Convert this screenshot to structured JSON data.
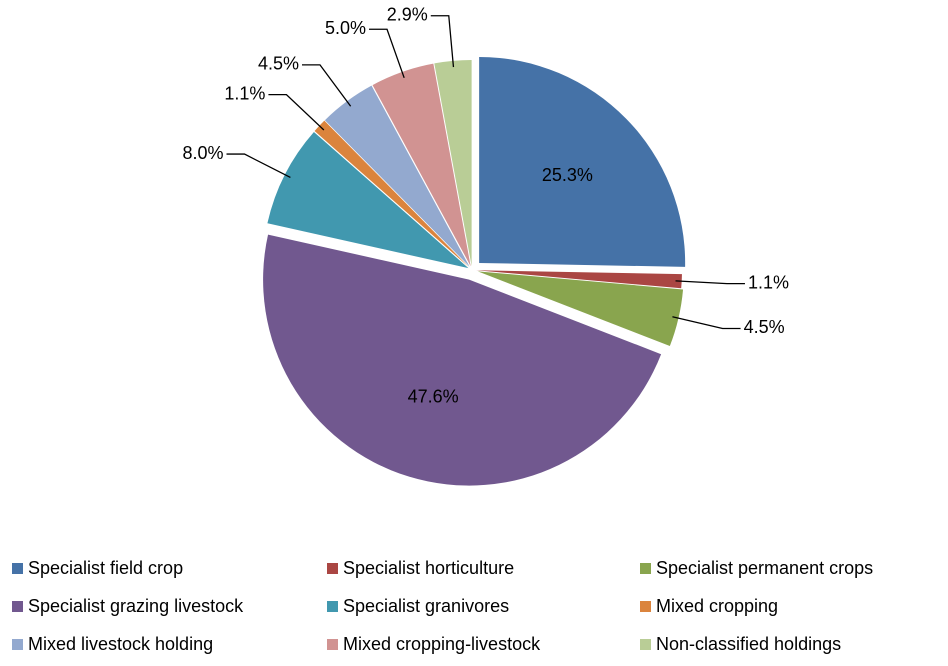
{
  "chart_data": {
    "type": "pie",
    "categories": [
      "Specialist field crop",
      "Specialist horticulture",
      "Specialist permanent crops",
      "Specialist grazing livestock",
      "Specialist granivores",
      "Mixed cropping",
      "Mixed livestock holding",
      "Mixed cropping-livestock",
      "Non-classified holdings"
    ],
    "values": [
      25.3,
      1.1,
      4.5,
      47.6,
      8.0,
      1.1,
      4.5,
      5.0,
      2.9
    ],
    "value_labels": [
      "25.3%",
      "1.1%",
      "4.5%",
      "47.6%",
      "8.0%",
      "1.1%",
      "4.5%",
      "5.0%",
      "2.9%"
    ],
    "colors": [
      "#4572a7",
      "#aa4643",
      "#89a54e",
      "#71588f",
      "#4198af",
      "#db843d",
      "#93a9cf",
      "#d19392",
      "#b9cd96"
    ],
    "legend": "bottom"
  }
}
